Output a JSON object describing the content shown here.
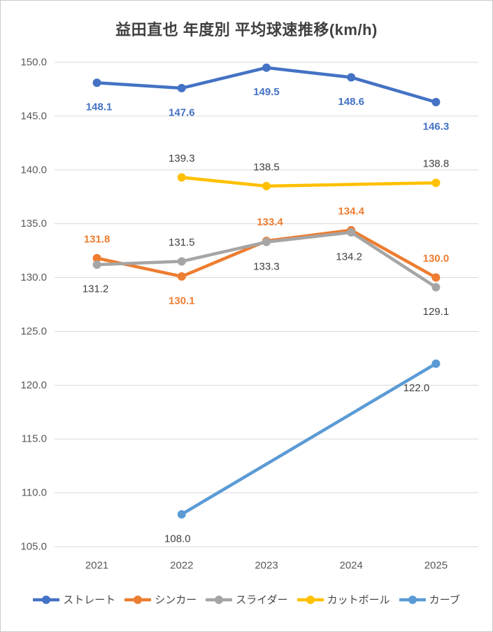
{
  "title": "益田直也 年度別 平均球速推移(km/h)",
  "chart_data": {
    "type": "line",
    "categories": [
      "2021",
      "2022",
      "2023",
      "2024",
      "2025"
    ],
    "series": [
      {
        "name": "ストレート",
        "color": "#4472C4",
        "values": [
          148.1,
          147.6,
          149.5,
          148.6,
          146.3
        ],
        "label_color": "#4472C4",
        "label_bold": true,
        "label_side": [
          "below",
          "below",
          "below",
          "below",
          "below"
        ],
        "label_dx": [
          3,
          0,
          0,
          0,
          0
        ]
      },
      {
        "name": "シンカー",
        "color": "#ED7D31",
        "values": [
          131.8,
          130.1,
          133.4,
          134.4,
          130.0
        ],
        "label_color": "#ED7D31",
        "label_bold": true,
        "label_side": [
          "above",
          "below",
          "above",
          "above",
          "above"
        ],
        "label_dx": [
          0,
          0,
          5,
          0,
          0
        ]
      },
      {
        "name": "スライダー",
        "color": "#A5A5A5",
        "values": [
          131.2,
          131.5,
          133.3,
          134.2,
          129.1
        ],
        "label_color": "#404040",
        "label_bold": false,
        "label_side": [
          "below",
          "above",
          "below",
          "below",
          "below"
        ],
        "label_dx": [
          -2,
          0,
          0,
          -3,
          0
        ]
      },
      {
        "name": "カットボール",
        "color": "#FFC000",
        "values": [
          null,
          139.3,
          138.5,
          null,
          138.8
        ],
        "label_color": "#404040",
        "label_bold": false,
        "label_side": [
          null,
          "above",
          "above",
          null,
          "above"
        ],
        "label_dx": [
          0,
          0,
          0,
          0,
          0
        ]
      },
      {
        "name": "カーブ",
        "color": "#5B9BD5",
        "values": [
          null,
          108.0,
          null,
          null,
          122.0
        ],
        "label_color": "#404040",
        "label_bold": false,
        "label_side": [
          null,
          "below",
          null,
          null,
          "below"
        ],
        "label_dx": [
          0,
          -6,
          0,
          0,
          -28
        ]
      }
    ],
    "ylim": [
      105,
      150
    ],
    "ytick_labels": [
      "150.0",
      "145.0",
      "140.0",
      "135.0",
      "130.0",
      "125.0",
      "120.0",
      "115.0",
      "110.0",
      "105.0"
    ],
    "grid": true,
    "gridline_color": "#D9D9D9",
    "axis_label_color": "#595959",
    "value_label_decimals": 1,
    "legend_position": "bottom"
  }
}
